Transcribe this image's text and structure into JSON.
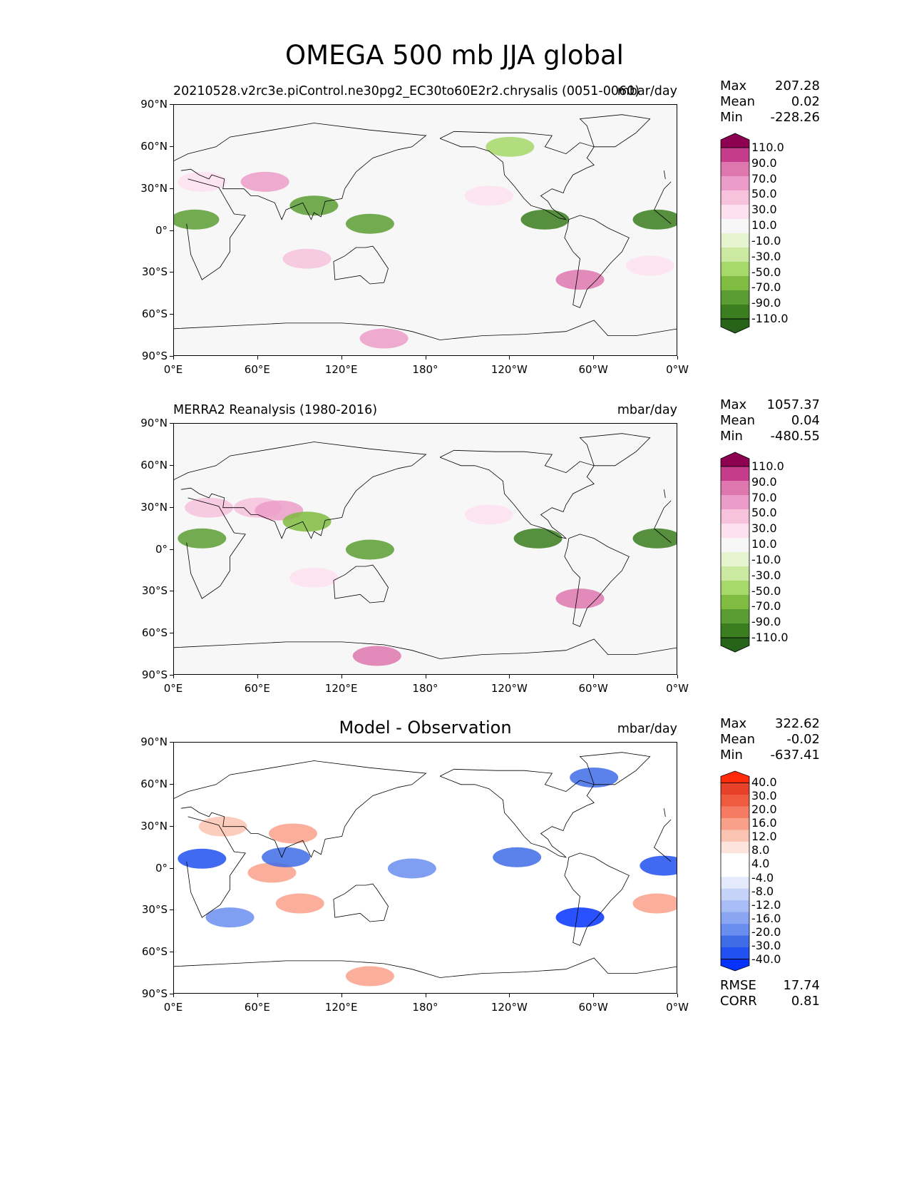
{
  "title": "OMEGA 500 mb JJA global",
  "colors": {
    "omega_levels": [
      "#276419",
      "#3a7e1f",
      "#5a9e33",
      "#7fbc41",
      "#a6d86a",
      "#cbe9a0",
      "#e6f5d0",
      "#f7f7f7",
      "#fde0ef",
      "#f6c2dc",
      "#ec9cc8",
      "#de77ae",
      "#c43c8a",
      "#8e0152"
    ],
    "diff_levels": [
      "#0532ff",
      "#2050f0",
      "#3e6be6",
      "#6a8ef0",
      "#8aa6f2",
      "#a8bdf5",
      "#c6d3f8",
      "#e4eafb",
      "#ffffff",
      "#ffffff",
      "#fde4dc",
      "#fbc4b2",
      "#f9a08a",
      "#f57c62",
      "#f05a3f",
      "#e8412a",
      "#ff2a0a"
    ]
  },
  "panels": [
    {
      "left_title": "20210528.v2rc3e.piControl.ne30pg2_EC30to60E2r2.chrysalis (0051-0060)",
      "center_title": "",
      "units": "mbar/day",
      "stats": [
        {
          "label": "Max",
          "value": "207.28"
        },
        {
          "label": "Mean",
          "value": "0.02"
        },
        {
          "label": "Min",
          "value": "-228.26"
        }
      ],
      "colorbar_labels": [
        "110.0",
        "90.0",
        "70.0",
        "50.0",
        "30.0",
        "10.0",
        "-10.0",
        "-30.0",
        "-50.0",
        "-70.0",
        "-90.0",
        "-110.0"
      ]
    },
    {
      "left_title": "MERRA2 Reanalysis (1980-2016)",
      "center_title": "",
      "units": "mbar/day",
      "stats": [
        {
          "label": "Max",
          "value": "1057.37"
        },
        {
          "label": "Mean",
          "value": "0.04"
        },
        {
          "label": "Min",
          "value": "-480.55"
        }
      ],
      "colorbar_labels": [
        "110.0",
        "90.0",
        "70.0",
        "50.0",
        "30.0",
        "10.0",
        "-10.0",
        "-30.0",
        "-50.0",
        "-70.0",
        "-90.0",
        "-110.0"
      ]
    },
    {
      "left_title": "",
      "center_title": "Model - Observation",
      "units": "mbar/day",
      "stats": [
        {
          "label": "Max",
          "value": "322.62"
        },
        {
          "label": "Mean",
          "value": "-0.02"
        },
        {
          "label": "Min",
          "value": "-637.41"
        }
      ],
      "colorbar_labels": [
        "40.0",
        "30.0",
        "20.0",
        "16.0",
        "12.0",
        "8.0",
        "4.0",
        "-4.0",
        "-8.0",
        "-12.0",
        "-16.0",
        "-20.0",
        "-30.0",
        "-40.0"
      ],
      "rmse_corr": [
        {
          "label": "RMSE",
          "value": "17.74"
        },
        {
          "label": "CORR",
          "value": "0.81"
        }
      ]
    }
  ],
  "axes": {
    "y_ticks": [
      "90°N",
      "60°N",
      "30°N",
      "0°",
      "30°S",
      "60°S",
      "90°S"
    ],
    "x_ticks": [
      "0°E",
      "60°E",
      "120°E",
      "180°",
      "120°W",
      "60°W",
      "0°W"
    ]
  },
  "chart_data": {
    "type": "heatmap",
    "title": "OMEGA 500 mb JJA global",
    "xlim": [
      0,
      360
    ],
    "ylim": [
      -90,
      90
    ],
    "x_ticks": [
      "0°E",
      "60°E",
      "120°E",
      "180°",
      "120°W",
      "60°W",
      "0°W"
    ],
    "y_ticks": [
      "90°N",
      "60°N",
      "30°N",
      "0°",
      "30°S",
      "60°S",
      "90°S"
    ],
    "panels": [
      {
        "name": "20210528.v2rc3e.piControl.ne30pg2_EC30to60E2r2.chrysalis (0051-0060)",
        "units": "mbar/day",
        "max": 207.28,
        "mean": 0.02,
        "min": -228.26,
        "contour_levels": [
          -110,
          -90,
          -70,
          -50,
          -30,
          -10,
          10,
          30,
          50,
          70,
          90,
          110
        ],
        "features": [
          {
            "lon": 65,
            "lat": 35,
            "value": 80
          },
          {
            "lon": 20,
            "lat": 35,
            "value": 50
          },
          {
            "lon": 95,
            "lat": -20,
            "value": 70
          },
          {
            "lon": 150,
            "lat": -77,
            "value": 80
          },
          {
            "lon": 225,
            "lat": 25,
            "value": 40
          },
          {
            "lon": 340,
            "lat": -25,
            "value": 45
          },
          {
            "lon": 15,
            "lat": 8,
            "value": -70
          },
          {
            "lon": 100,
            "lat": 18,
            "value": -80
          },
          {
            "lon": 140,
            "lat": 5,
            "value": -70
          },
          {
            "lon": 265,
            "lat": 8,
            "value": -90
          },
          {
            "lon": 345,
            "lat": 8,
            "value": -100
          },
          {
            "lon": 290,
            "lat": -35,
            "value": 110
          },
          {
            "lon": 240,
            "lat": 60,
            "value": -40
          }
        ]
      },
      {
        "name": "MERRA2 Reanalysis (1980-2016)",
        "units": "mbar/day",
        "max": 1057.37,
        "mean": 0.04,
        "min": -480.55,
        "contour_levels": [
          -110,
          -90,
          -70,
          -50,
          -30,
          -10,
          10,
          30,
          50,
          70,
          90,
          110
        ],
        "features": [
          {
            "lon": 60,
            "lat": 30,
            "value": 70
          },
          {
            "lon": 25,
            "lat": 30,
            "value": 60
          },
          {
            "lon": 75,
            "lat": 28,
            "value": 90
          },
          {
            "lon": 100,
            "lat": -20,
            "value": 50
          },
          {
            "lon": 145,
            "lat": -76,
            "value": 100
          },
          {
            "lon": 225,
            "lat": 25,
            "value": 40
          },
          {
            "lon": 20,
            "lat": 8,
            "value": -70
          },
          {
            "lon": 95,
            "lat": 20,
            "value": -60
          },
          {
            "lon": 140,
            "lat": 0,
            "value": -80
          },
          {
            "lon": 260,
            "lat": 8,
            "value": -100
          },
          {
            "lon": 345,
            "lat": 8,
            "value": -90
          },
          {
            "lon": 290,
            "lat": -35,
            "value": 110
          }
        ]
      },
      {
        "name": "Model - Observation",
        "units": "mbar/day",
        "max": 322.62,
        "mean": -0.02,
        "min": -637.41,
        "rmse": 17.74,
        "corr": 0.81,
        "contour_levels": [
          -40,
          -30,
          -20,
          -16,
          -12,
          -8,
          -4,
          4,
          8,
          12,
          16,
          20,
          30,
          40
        ],
        "features": [
          {
            "lon": 85,
            "lat": 25,
            "value": 30
          },
          {
            "lon": 35,
            "lat": 30,
            "value": 20
          },
          {
            "lon": 70,
            "lat": -3,
            "value": 30
          },
          {
            "lon": 90,
            "lat": -25,
            "value": 25
          },
          {
            "lon": 345,
            "lat": -25,
            "value": 25
          },
          {
            "lon": 140,
            "lat": -77,
            "value": 30
          },
          {
            "lon": 20,
            "lat": 7,
            "value": -30
          },
          {
            "lon": 80,
            "lat": 8,
            "value": -20
          },
          {
            "lon": 170,
            "lat": 0,
            "value": -16
          },
          {
            "lon": 245,
            "lat": 8,
            "value": -20
          },
          {
            "lon": 350,
            "lat": 2,
            "value": -30
          },
          {
            "lon": 40,
            "lat": -35,
            "value": -16
          },
          {
            "lon": 290,
            "lat": -35,
            "value": -40
          },
          {
            "lon": 300,
            "lat": 65,
            "value": -20
          }
        ]
      }
    ]
  }
}
